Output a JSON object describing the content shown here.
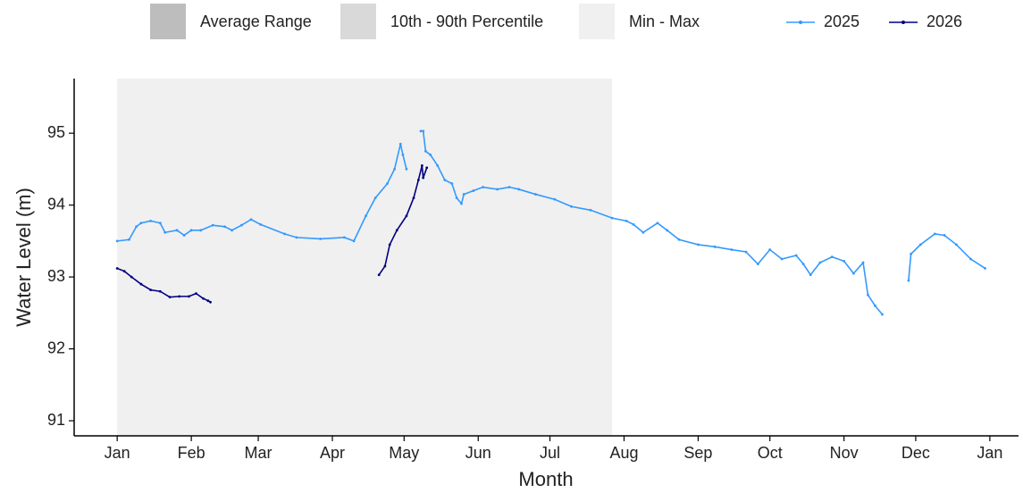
{
  "chart_data": {
    "type": "line",
    "x_label": "Month",
    "y_label": "Water Level (m)",
    "xlim": [
      -18,
      377
    ],
    "ylim": [
      90.79,
      95.76
    ],
    "xticks": [
      {
        "value": 0,
        "label": "Jan"
      },
      {
        "value": 31,
        "label": "Feb"
      },
      {
        "value": 59,
        "label": "Mar"
      },
      {
        "value": 90,
        "label": "Apr"
      },
      {
        "value": 120,
        "label": "May"
      },
      {
        "value": 151,
        "label": "Jun"
      },
      {
        "value": 181,
        "label": "Jul"
      },
      {
        "value": 212,
        "label": "Aug"
      },
      {
        "value": 243,
        "label": "Sep"
      },
      {
        "value": 273,
        "label": "Oct"
      },
      {
        "value": 304,
        "label": "Nov"
      },
      {
        "value": 334,
        "label": "Dec"
      },
      {
        "value": 365,
        "label": "Jan"
      }
    ],
    "yticks": [
      91,
      92,
      93,
      94,
      95
    ],
    "bands": [
      {
        "name": "Average Range",
        "color": "#bdbdbd"
      },
      {
        "name": "10th - 90th Percentile",
        "color": "#d9d9d9"
      },
      {
        "name": "Min - Max",
        "color": "#f0f0f0",
        "x": [
          0,
          207
        ],
        "low": 90.79,
        "high": 95.76
      }
    ],
    "series": [
      {
        "name": "2025",
        "color": "#3399ff",
        "x": [
          0,
          5,
          8,
          10,
          14,
          18,
          20,
          25,
          28,
          31,
          35,
          40,
          45,
          48,
          52,
          56,
          60,
          70,
          75,
          85,
          95,
          99,
          104,
          108,
          113,
          116,
          118.5,
          119.5,
          121,
          124,
          127,
          128,
          129,
          131,
          134,
          137,
          140,
          142,
          144,
          145,
          149,
          153,
          159,
          164,
          168,
          175,
          183,
          190,
          198,
          207,
          213,
          216,
          220,
          226,
          230,
          235,
          243,
          250,
          257,
          263,
          268,
          273,
          278,
          284,
          287,
          290,
          294,
          299,
          304,
          308,
          312,
          314,
          317,
          320,
          325,
          331,
          332,
          336,
          342,
          346,
          351,
          357,
          363
        ],
        "values": [
          93.5,
          93.52,
          93.7,
          93.75,
          93.78,
          93.75,
          93.62,
          93.65,
          93.58,
          93.65,
          93.65,
          93.72,
          93.7,
          93.65,
          93.72,
          93.8,
          93.73,
          93.6,
          93.55,
          93.53,
          93.55,
          93.5,
          93.85,
          94.1,
          94.3,
          94.5,
          94.85,
          94.7,
          94.5,
          null,
          95.03,
          95.03,
          94.75,
          94.7,
          94.55,
          94.35,
          94.3,
          94.1,
          94.02,
          94.15,
          94.2,
          94.25,
          94.22,
          94.25,
          94.22,
          94.15,
          94.08,
          93.98,
          93.93,
          93.82,
          93.78,
          93.73,
          93.62,
          93.75,
          93.65,
          93.52,
          93.45,
          93.42,
          93.38,
          93.35,
          93.18,
          93.38,
          93.25,
          93.3,
          93.18,
          93.03,
          93.2,
          93.28,
          93.22,
          93.05,
          93.2,
          92.75,
          92.6,
          92.48,
          null,
          92.95,
          93.32,
          93.45,
          93.6,
          93.58,
          93.45,
          93.25,
          93.12
        ]
      },
      {
        "name": "2026",
        "color": "#000080",
        "x": [
          0,
          3,
          6,
          10,
          14,
          18,
          22,
          26,
          30,
          33,
          36,
          38,
          39,
          70,
          109.5,
          112,
          114,
          117,
          121,
          124,
          126,
          127.5,
          128,
          129.5
        ],
        "values": [
          93.12,
          93.08,
          93.0,
          92.9,
          92.82,
          92.8,
          92.72,
          92.73,
          92.73,
          92.77,
          92.7,
          92.67,
          92.65,
          null,
          93.03,
          93.15,
          93.45,
          93.65,
          93.85,
          94.1,
          94.35,
          94.55,
          94.38,
          94.52
        ]
      }
    ]
  }
}
